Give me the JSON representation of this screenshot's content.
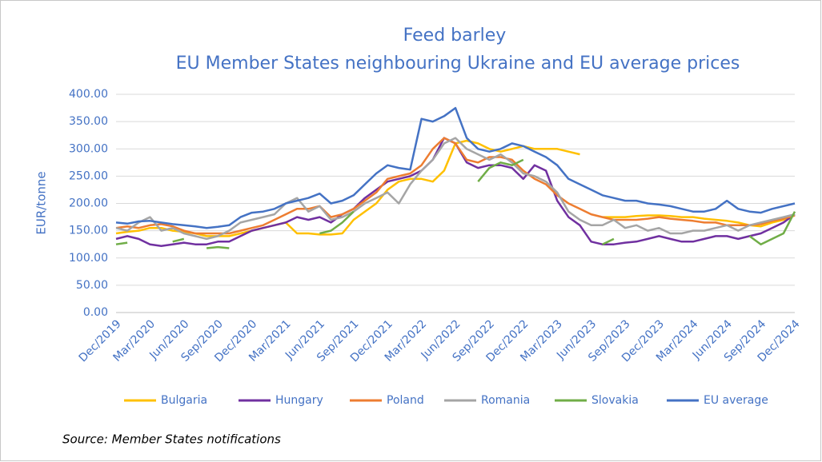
{
  "chart_data": {
    "type": "line",
    "title": [
      "Feed barley",
      "EU Member States neighbouring Ukraine and EU average prices"
    ],
    "y_label": "EUR/tonne",
    "source": "Source: Member States notifications",
    "categories": [
      "Dec/2019",
      null,
      null,
      "Mar/2020",
      null,
      null,
      "Jun/2020",
      null,
      null,
      "Sep/2020",
      null,
      null,
      "Dec/2020",
      null,
      null,
      "Mar/2021",
      null,
      null,
      "Jun/2021",
      null,
      null,
      "Sep/2021",
      null,
      null,
      "Dec/2021",
      null,
      null,
      "Mar/2022",
      null,
      null,
      "Jun/2022",
      null,
      null,
      "Sep/2022",
      null,
      null,
      "Dec/2022",
      null,
      null,
      "Mar/2023",
      null,
      null,
      "Jun/2023",
      null,
      null,
      "Sep/2023",
      null,
      null,
      "Dec/2023",
      null,
      null,
      "Mar/2024",
      null,
      null,
      "Jun/2024",
      null,
      null,
      "Sep/2024",
      null,
      null,
      "Dec/2024"
    ],
    "series": [
      {
        "name": "Bulgaria",
        "color": "#ffc000",
        "values": [
          145,
          148,
          150,
          155,
          155,
          150,
          148,
          145,
          140,
          140,
          140,
          145,
          150,
          155,
          160,
          165,
          145,
          145,
          143,
          143,
          145,
          170,
          185,
          200,
          225,
          240,
          245,
          245,
          240,
          260,
          310,
          315,
          310,
          300,
          295,
          300,
          305,
          300,
          300,
          300,
          295,
          290,
          null,
          175,
          175,
          175,
          177,
          178,
          178,
          177,
          175,
          175,
          172,
          170,
          168,
          165,
          160,
          158,
          165,
          170,
          178
        ]
      },
      {
        "name": "Hungary",
        "color": "#7030a0",
        "values": [
          135,
          140,
          135,
          125,
          122,
          125,
          128,
          125,
          125,
          130,
          130,
          140,
          150,
          155,
          160,
          165,
          175,
          170,
          175,
          165,
          180,
          190,
          210,
          225,
          240,
          245,
          250,
          260,
          280,
          320,
          310,
          275,
          265,
          270,
          270,
          265,
          245,
          270,
          260,
          205,
          175,
          160,
          130,
          125,
          125,
          128,
          130,
          135,
          140,
          135,
          130,
          130,
          135,
          140,
          140,
          135,
          140,
          145,
          155,
          165,
          180
        ]
      },
      {
        "name": "Poland",
        "color": "#ed7d31",
        "values": [
          155,
          158,
          155,
          160,
          162,
          158,
          150,
          145,
          145,
          145,
          145,
          150,
          155,
          160,
          170,
          180,
          190,
          190,
          195,
          175,
          180,
          190,
          205,
          220,
          245,
          250,
          255,
          270,
          300,
          320,
          310,
          280,
          275,
          285,
          285,
          280,
          260,
          245,
          235,
          215,
          200,
          190,
          180,
          175,
          170,
          170,
          170,
          172,
          175,
          172,
          170,
          168,
          165,
          165,
          160,
          160,
          160,
          162,
          168,
          172,
          178
        ]
      },
      {
        "name": "Romania",
        "color": "#a5a5a5",
        "values": [
          155,
          150,
          165,
          175,
          150,
          155,
          145,
          140,
          135,
          140,
          150,
          165,
          170,
          175,
          180,
          200,
          210,
          185,
          195,
          170,
          175,
          185,
          200,
          210,
          220,
          200,
          235,
          260,
          280,
          310,
          320,
          300,
          290,
          280,
          290,
          275,
          255,
          250,
          240,
          220,
          185,
          170,
          160,
          160,
          170,
          155,
          160,
          150,
          155,
          145,
          145,
          150,
          150,
          155,
          160,
          150,
          160,
          165,
          170,
          175,
          180
        ]
      },
      {
        "name": "Slovakia",
        "color": "#70ad47",
        "values": [
          125,
          128,
          null,
          null,
          null,
          130,
          135,
          null,
          118,
          120,
          118,
          null,
          null,
          null,
          null,
          null,
          null,
          null,
          145,
          150,
          165,
          185,
          null,
          null,
          null,
          null,
          null,
          null,
          null,
          null,
          null,
          null,
          240,
          265,
          275,
          270,
          280,
          null,
          null,
          null,
          null,
          null,
          null,
          125,
          135,
          null,
          null,
          null,
          null,
          null,
          null,
          null,
          null,
          null,
          null,
          null,
          140,
          125,
          135,
          145,
          185
        ]
      },
      {
        "name": "EU average",
        "color": "#4472c4",
        "values": [
          165,
          163,
          167,
          168,
          165,
          162,
          160,
          158,
          155,
          157,
          160,
          175,
          183,
          185,
          190,
          200,
          205,
          210,
          218,
          200,
          205,
          215,
          235,
          255,
          270,
          265,
          262,
          355,
          350,
          360,
          375,
          320,
          300,
          295,
          300,
          310,
          305,
          295,
          285,
          270,
          245,
          235,
          225,
          215,
          210,
          205,
          205,
          200,
          198,
          195,
          190,
          185,
          185,
          190,
          205,
          190,
          185,
          183,
          190,
          195,
          200
        ]
      }
    ],
    "ylim": [
      0,
      400
    ],
    "yticks": [
      {
        "value": 0,
        "label": "0.00"
      },
      {
        "value": 50,
        "label": "50.00"
      },
      {
        "value": 100,
        "label": "100.00"
      },
      {
        "value": 150,
        "label": "150.00"
      },
      {
        "value": 200,
        "label": "200.00"
      },
      {
        "value": 250,
        "label": "250.00"
      },
      {
        "value": 300,
        "label": "300.00"
      },
      {
        "value": 350,
        "label": "350.00"
      },
      {
        "value": 400,
        "label": "400.00"
      }
    ],
    "grid": true
  }
}
